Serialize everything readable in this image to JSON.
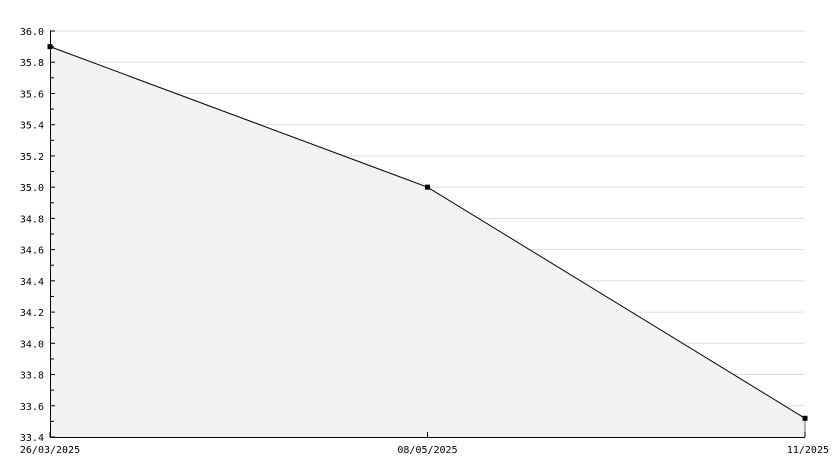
{
  "chart_data": {
    "type": "area",
    "title": "",
    "xlabel": "",
    "ylabel": "",
    "x": [
      "26/03/2025",
      "08/05/2025",
      "11/2025"
    ],
    "x_tick_labels": [
      "26/03/2025",
      "08/05/2025",
      "11/2025"
    ],
    "series": [
      {
        "values": [
          35.9,
          35.0,
          33.52
        ]
      }
    ],
    "ylim": [
      33.4,
      36.0
    ],
    "y_ticks": [
      33.4,
      33.6,
      33.8,
      34.0,
      34.2,
      34.4,
      34.6,
      34.8,
      35.0,
      35.2,
      35.4,
      35.6,
      35.8,
      36.0
    ],
    "grid": true,
    "legend": "none",
    "colors": {
      "fill": "#f2f2f2",
      "line": "#000000",
      "grid": "#dddddd",
      "marker": "#000000"
    }
  }
}
